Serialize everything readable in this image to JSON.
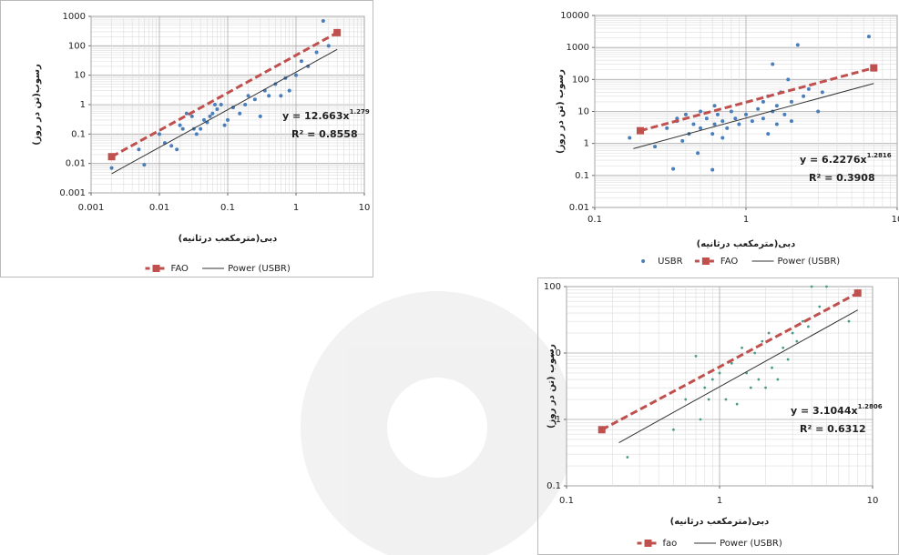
{
  "chart_data": [
    {
      "type": "scatter",
      "x_label": "دبی(مترمکعب درثانیه)",
      "y_label": "رسوب(تن در روز)",
      "xscale": "log",
      "yscale": "log",
      "grid": true,
      "xlim": [
        0.001,
        10
      ],
      "xticks": [
        0.001,
        0.01,
        0.1,
        1,
        10
      ],
      "ylim": [
        0.001,
        1000
      ],
      "yticks": [
        0.001,
        0.01,
        0.1,
        1,
        10,
        100,
        1000
      ],
      "equation": "y = 12.663x",
      "equation_exponent": "1.279",
      "r_squared": "R² = 0.8558",
      "series": [
        {
          "color": "#4a7ebb",
          "mode": "markers",
          "x": [
            0.002,
            0.005,
            0.006,
            0.01,
            0.012,
            0.015,
            0.018,
            0.02,
            0.022,
            0.025,
            0.03,
            0.032,
            0.035,
            0.04,
            0.045,
            0.05,
            0.055,
            0.06,
            0.065,
            0.07,
            0.08,
            0.09,
            0.1,
            0.12,
            0.15,
            0.18,
            0.2,
            0.25,
            0.3,
            0.35,
            0.4,
            0.5,
            0.6,
            0.7,
            0.8,
            1,
            1.2,
            1.5,
            2,
            2.5,
            3
          ],
          "values": [
            0.007,
            0.03,
            0.009,
            0.1,
            0.05,
            0.04,
            0.03,
            0.2,
            0.15,
            0.5,
            0.4,
            0.15,
            0.1,
            0.15,
            0.3,
            0.25,
            0.4,
            0.5,
            1,
            0.7,
            1,
            0.2,
            0.3,
            0.8,
            0.5,
            1,
            2,
            1.5,
            0.4,
            3,
            2,
            5,
            2,
            8,
            3,
            10,
            30,
            20,
            60,
            700,
            100
          ]
        },
        {
          "name": "FAO",
          "color": "#c0504d",
          "mode": "dashed",
          "marker": "square",
          "x": [
            0.002,
            4
          ],
          "values": [
            0.017,
            280
          ]
        },
        {
          "name": "Power (USBR)",
          "color": "#333333",
          "mode": "solid",
          "x": [
            0.002,
            4
          ],
          "values": [
            0.0045,
            75
          ]
        }
      ]
    },
    {
      "type": "scatter",
      "x_label": "دبی(مترمکعب درثانیه)",
      "y_label": "رسوب (تن در روز)",
      "xscale": "log",
      "yscale": "log",
      "grid": true,
      "xlim": [
        0.1,
        10
      ],
      "xticks": [
        0.1,
        1,
        10
      ],
      "ylim": [
        0.01,
        10000
      ],
      "yticks": [
        0.01,
        0.1,
        1,
        10,
        100,
        1000,
        10000
      ],
      "equation": "y = 6.2276x",
      "equation_exponent": "1.2816",
      "r_squared": "R² = 0.3908",
      "series": [
        {
          "name": "USBR",
          "color": "#4a7ebb",
          "mode": "markers",
          "x": [
            0.17,
            0.25,
            0.3,
            0.33,
            0.35,
            0.38,
            0.4,
            0.42,
            0.45,
            0.48,
            0.5,
            0.5,
            0.55,
            0.6,
            0.6,
            0.62,
            0.65,
            0.7,
            0.7,
            0.75,
            0.8,
            0.85,
            0.9,
            1,
            1.1,
            1.2,
            1.3,
            1.3,
            1.4,
            1.5,
            1.5,
            1.6,
            1.6,
            1.7,
            1.8,
            1.9,
            2,
            2,
            2.2,
            2.4,
            2.6,
            3,
            3.2,
            0.35,
            0.62,
            1.4,
            6.5
          ],
          "values": [
            1.5,
            0.8,
            3,
            0.16,
            5,
            1.2,
            8,
            2,
            4,
            0.5,
            3,
            10,
            6,
            2,
            0.15,
            4,
            8,
            1.5,
            5,
            3,
            10,
            6,
            4,
            8,
            5,
            12,
            20,
            6,
            30,
            10,
            300,
            15,
            4,
            40,
            8,
            100,
            20,
            5,
            1200,
            30,
            50,
            10,
            40,
            6,
            15,
            2,
            2200
          ]
        },
        {
          "name": "FAO",
          "color": "#c0504d",
          "mode": "dashed",
          "marker": "square",
          "x": [
            0.2,
            7
          ],
          "values": [
            2.5,
            230
          ]
        },
        {
          "name": "Power (USBR)",
          "color": "#333333",
          "mode": "solid",
          "x": [
            0.18,
            7
          ],
          "values": [
            0.69,
            75
          ]
        }
      ]
    },
    {
      "type": "scatter",
      "x_label": "دبی(مترمکعب درثانیه)",
      "y_label": "رسوب (تن در روز)",
      "xscale": "log",
      "yscale": "log",
      "grid": true,
      "xlim": [
        0.1,
        10
      ],
      "xticks": [
        0.1,
        1,
        10
      ],
      "ylim": [
        0.1,
        100
      ],
      "yticks": [
        0.1,
        1,
        10,
        100
      ],
      "equation": "y = 3.1044x",
      "equation_exponent": "1.2806",
      "r_squared": "R² = 0.6312",
      "series": [
        {
          "color": "#4a9a8a",
          "mode": "markers",
          "x": [
            0.25,
            0.5,
            0.6,
            0.7,
            0.75,
            0.8,
            0.85,
            0.9,
            1,
            1.1,
            1.2,
            1.3,
            1.4,
            1.5,
            1.6,
            1.7,
            1.8,
            1.9,
            2,
            2.1,
            2.2,
            2.4,
            2.6,
            2.8,
            3,
            3.2,
            3.5,
            3.8,
            4,
            4.5,
            5,
            7
          ],
          "values": [
            0.27,
            0.7,
            2,
            9,
            1,
            3,
            2,
            4,
            5,
            2,
            7,
            1.7,
            12,
            5,
            3,
            10,
            4,
            15,
            3,
            20,
            6,
            4,
            12,
            8,
            20,
            15,
            30,
            25,
            100,
            50,
            100,
            30
          ]
        },
        {
          "name": "fao",
          "color": "#c0504d",
          "mode": "dashed",
          "marker": "square",
          "x": [
            0.17,
            8
          ],
          "values": [
            0.7,
            80
          ]
        },
        {
          "name": "Power (USBR)",
          "color": "#333333",
          "mode": "solid",
          "x": [
            0.22,
            8
          ],
          "values": [
            0.447,
            44.5
          ]
        }
      ]
    }
  ]
}
